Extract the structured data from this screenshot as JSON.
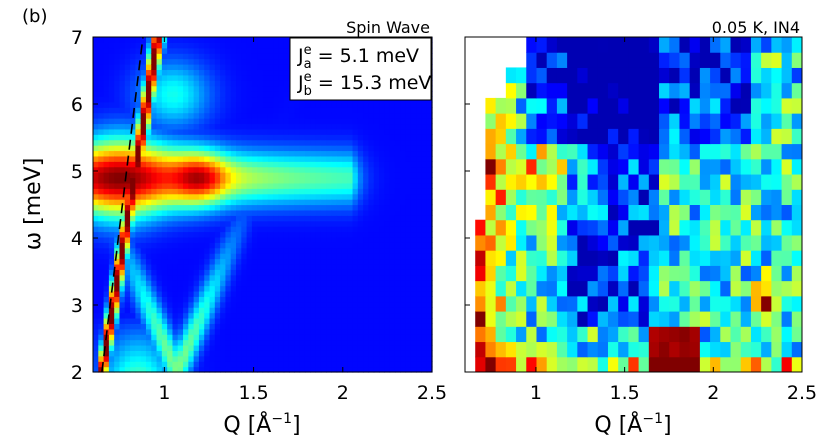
{
  "figure_label": "(b)",
  "chart_data": [
    {
      "type": "heatmap",
      "panel": "left",
      "title": "Spin Wave",
      "xlabel": "Q [Å",
      "xlabel_exp": "−1",
      "xlabel_close": "]",
      "ylabel": "ω [meV]",
      "xlim": [
        0.6,
        2.5
      ],
      "ylim": [
        2,
        7
      ],
      "xticks": [
        1,
        1.5,
        2,
        2.5
      ],
      "xtick_labels": [
        "1",
        "1.5",
        "2",
        "2.5"
      ],
      "yticks": [
        2,
        3,
        4,
        5,
        6,
        7
      ],
      "ytick_labels": [
        "2",
        "3",
        "4",
        "5",
        "6",
        "7"
      ],
      "grid_q": 64,
      "grid_w": 62,
      "colormap": "jet",
      "dispersion_line": {
        "style": "dashed",
        "color": "#000000",
        "points": [
          [
            0.65,
            2.0
          ],
          [
            0.88,
            7.0
          ]
        ]
      },
      "annotation": {
        "line1_base": "J",
        "line1_sup": "e",
        "line1_sub": "a",
        "line1_value": " = 5.1 meV",
        "line2_base": "J",
        "line2_sup": "e",
        "line2_sub": "b",
        "line2_value": " = 15.3 meV"
      },
      "features": [
        {
          "name": "flat band",
          "energy_meV": 4.9,
          "q_range": [
            0.6,
            2.05
          ],
          "peak_q": [
            0.8,
            1.2
          ]
        },
        {
          "name": "dispersive branch",
          "min_q": 1.07,
          "min_energy_meV": 2.0
        }
      ]
    },
    {
      "type": "heatmap",
      "panel": "right",
      "title": "0.05 K, IN4",
      "xlabel": "Q [Å",
      "xlabel_exp": "−1",
      "xlabel_close": "]",
      "xlim": [
        0.6,
        2.5
      ],
      "ylim": [
        2,
        7
      ],
      "xticks": [
        1,
        1.5,
        2,
        2.5
      ],
      "xtick_labels": [
        "1",
        "1.5",
        "2",
        "2.5"
      ],
      "yticks": [
        3,
        4,
        5,
        6
      ],
      "grid_q": 33,
      "grid_w": 22,
      "colormap": "jet",
      "seed": 7,
      "features": [
        {
          "name": "low-Q hot edge",
          "q_range": [
            0.6,
            0.9
          ]
        },
        {
          "name": "quasielastic",
          "energy_meV": [
            2.0,
            2.6
          ],
          "q_range": [
            1.65,
            1.95
          ]
        },
        {
          "name": "hot spot",
          "q": 2.3,
          "energy_meV": 3.0
        },
        {
          "name": "flat band",
          "energy_meV": 4.9
        }
      ]
    }
  ]
}
